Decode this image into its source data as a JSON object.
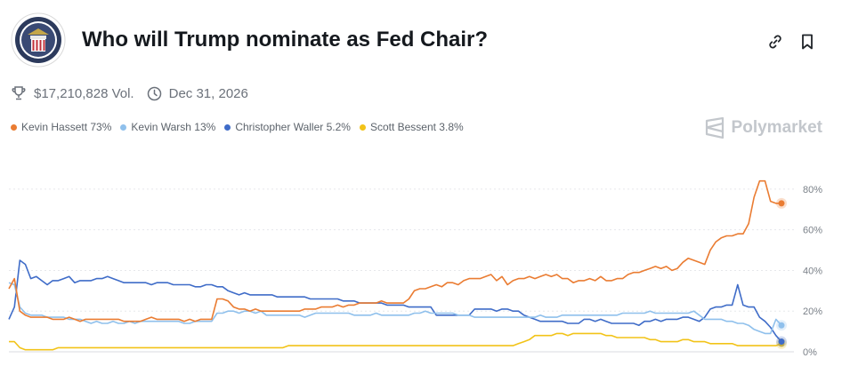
{
  "header": {
    "title": "Who will Trump nominate as Fed Chair?",
    "seal_icon": "federal-reserve-seal-icon",
    "link_icon": "link-icon",
    "bookmark_icon": "bookmark-icon"
  },
  "meta": {
    "volume": "$17,210,828 Vol.",
    "end_date": "Dec 31, 2026"
  },
  "brand": {
    "name": "Polymarket"
  },
  "legend": [
    {
      "label": "Kevin Hassett 73%",
      "color": "#ea7c32"
    },
    {
      "label": "Kevin Warsh 13%",
      "color": "#8fc0ec"
    },
    {
      "label": "Christopher Waller 5.2%",
      "color": "#3f6cc8"
    },
    {
      "label": "Scott Bessent 3.8%",
      "color": "#f2c318"
    }
  ],
  "chart_data": {
    "type": "line",
    "title": "",
    "xlabel": "",
    "ylabel": "",
    "ylim": [
      0,
      90
    ],
    "y_ticks": [
      "0%",
      "20%",
      "40%",
      "60%",
      "80%"
    ],
    "grid": true,
    "series": [
      {
        "name": "Kevin Hassett",
        "color": "#ea7c32",
        "values": [
          31,
          36,
          20,
          18,
          17,
          17,
          17,
          17,
          16,
          16,
          16,
          17,
          16,
          15,
          16,
          16,
          16,
          16,
          16,
          16,
          16,
          15,
          15,
          15,
          15,
          16,
          17,
          16,
          16,
          16,
          16,
          16,
          15,
          16,
          15,
          16,
          16,
          16,
          26,
          26,
          25,
          22,
          21,
          21,
          20,
          21,
          20,
          20,
          20,
          20,
          20,
          20,
          20,
          20,
          21,
          21,
          21,
          22,
          22,
          22,
          23,
          22,
          23,
          23,
          24,
          24,
          24,
          24,
          25,
          24,
          24,
          24,
          24,
          26,
          30,
          31,
          31,
          32,
          33,
          32,
          34,
          34,
          33,
          35,
          36,
          36,
          36,
          37,
          38,
          35,
          37,
          33,
          35,
          36,
          36,
          37,
          36,
          37,
          38,
          37,
          38,
          36,
          36,
          34,
          35,
          35,
          36,
          35,
          37,
          35,
          35,
          36,
          36,
          38,
          39,
          39,
          40,
          41,
          42,
          41,
          42,
          40,
          41,
          44,
          46,
          45,
          44,
          43,
          50,
          54,
          56,
          57,
          57,
          58,
          58,
          63,
          76,
          84,
          84,
          74,
          73,
          73
        ]
      },
      {
        "name": "Kevin Warsh",
        "color": "#8fc0ec",
        "values": [
          34,
          33,
          22,
          19,
          18,
          18,
          18,
          17,
          17,
          17,
          17,
          16,
          16,
          16,
          15,
          14,
          15,
          14,
          14,
          15,
          14,
          14,
          15,
          14,
          15,
          15,
          15,
          15,
          15,
          15,
          15,
          15,
          14,
          14,
          15,
          15,
          15,
          15,
          19,
          19,
          20,
          20,
          19,
          20,
          20,
          19,
          20,
          18,
          18,
          18,
          18,
          18,
          18,
          18,
          17,
          18,
          19,
          19,
          19,
          19,
          19,
          19,
          19,
          18,
          18,
          18,
          18,
          19,
          18,
          18,
          18,
          18,
          18,
          18,
          19,
          19,
          20,
          19,
          19,
          19,
          19,
          19,
          18,
          18,
          18,
          17,
          17,
          17,
          17,
          17,
          17,
          17,
          17,
          17,
          17,
          17,
          17,
          18,
          17,
          17,
          17,
          18,
          18,
          18,
          18,
          18,
          18,
          18,
          18,
          18,
          18,
          18,
          19,
          19,
          19,
          19,
          19,
          20,
          19,
          19,
          19,
          19,
          19,
          19,
          19,
          20,
          18,
          16,
          16,
          16,
          16,
          15,
          15,
          14,
          14,
          13,
          11,
          10,
          9,
          9,
          16,
          13
        ]
      },
      {
        "name": "Christopher Waller",
        "color": "#3f6cc8",
        "values": [
          16,
          22,
          45,
          43,
          36,
          37,
          35,
          33,
          35,
          35,
          36,
          37,
          34,
          35,
          35,
          35,
          36,
          36,
          37,
          36,
          35,
          34,
          34,
          34,
          34,
          34,
          33,
          34,
          34,
          34,
          33,
          33,
          33,
          33,
          32,
          32,
          33,
          33,
          32,
          32,
          30,
          29,
          28,
          29,
          28,
          28,
          28,
          28,
          28,
          27,
          27,
          27,
          27,
          27,
          27,
          26,
          26,
          26,
          26,
          26,
          26,
          25,
          25,
          25,
          24,
          24,
          24,
          24,
          24,
          23,
          23,
          23,
          23,
          22,
          22,
          22,
          22,
          22,
          18,
          18,
          18,
          18,
          18,
          18,
          18,
          21,
          21,
          21,
          21,
          20,
          21,
          21,
          20,
          20,
          18,
          17,
          16,
          15,
          15,
          15,
          15,
          15,
          14,
          14,
          14,
          16,
          16,
          15,
          16,
          15,
          14,
          14,
          14,
          14,
          14,
          13,
          15,
          15,
          16,
          15,
          16,
          16,
          16,
          17,
          17,
          16,
          15,
          17,
          21,
          22,
          22,
          23,
          23,
          33,
          23,
          22,
          22,
          17,
          15,
          12,
          8,
          5
        ]
      },
      {
        "name": "Scott Bessent",
        "color": "#f2c318",
        "values": [
          5,
          5,
          2,
          1,
          1,
          1,
          1,
          1,
          1,
          2,
          2,
          2,
          2,
          2,
          2,
          2,
          2,
          2,
          2,
          2,
          2,
          2,
          2,
          2,
          2,
          2,
          2,
          2,
          2,
          2,
          2,
          2,
          2,
          2,
          2,
          2,
          2,
          2,
          2,
          2,
          2,
          2,
          2,
          2,
          2,
          2,
          2,
          2,
          2,
          2,
          2,
          3,
          3,
          3,
          3,
          3,
          3,
          3,
          3,
          3,
          3,
          3,
          3,
          3,
          3,
          3,
          3,
          3,
          3,
          3,
          3,
          3,
          3,
          3,
          3,
          3,
          3,
          3,
          3,
          3,
          3,
          3,
          3,
          3,
          3,
          3,
          3,
          3,
          3,
          3,
          3,
          3,
          3,
          4,
          5,
          6,
          8,
          8,
          8,
          8,
          9,
          9,
          8,
          9,
          9,
          9,
          9,
          9,
          9,
          8,
          8,
          7,
          7,
          7,
          7,
          7,
          7,
          6,
          6,
          5,
          5,
          5,
          5,
          6,
          6,
          5,
          5,
          5,
          4,
          4,
          4,
          4,
          4,
          3,
          3,
          3,
          3,
          3,
          3,
          3,
          3,
          4
        ]
      }
    ]
  }
}
